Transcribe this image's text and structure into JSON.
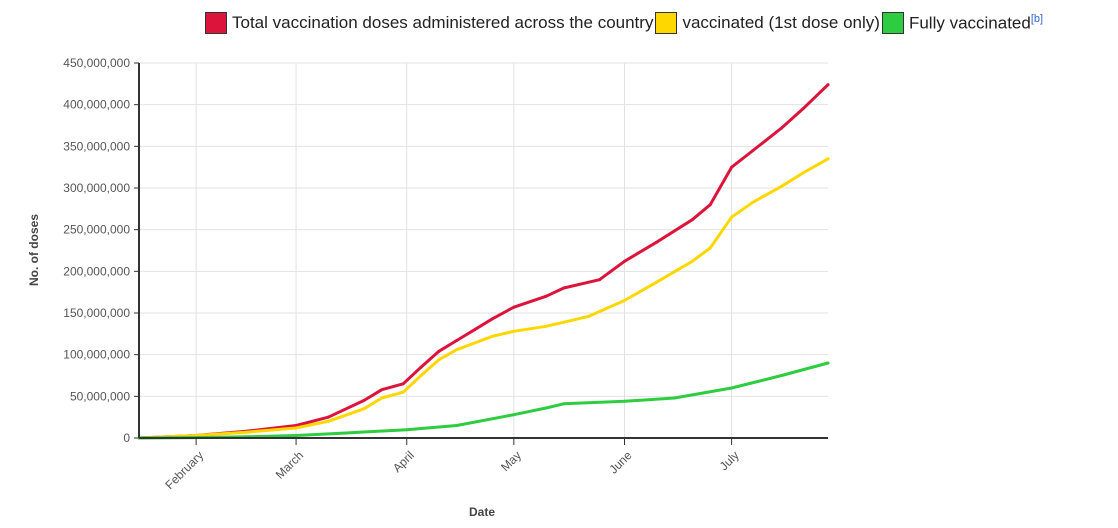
{
  "chart_data": {
    "type": "line",
    "xlabel": "Date",
    "ylabel": "No. of doses",
    "ylim": [
      0,
      450000000
    ],
    "yticks": [
      0,
      50000000,
      100000000,
      150000000,
      200000000,
      250000000,
      300000000,
      350000000,
      400000000,
      450000000
    ],
    "yticklabels": [
      "0",
      "50,000,000",
      "100,000,000",
      "150,000,000",
      "200,000,000",
      "250,000,000",
      "300,000,000",
      "350,000,000",
      "400,000,000",
      "450,000,000"
    ],
    "xlim": [
      "2021-01-16",
      "2021-07-28"
    ],
    "xticks": [
      "2021-02-01",
      "2021-03-01",
      "2021-04-01",
      "2021-05-01",
      "2021-06-01",
      "2021-07-01"
    ],
    "xticklabels": [
      "February",
      "March",
      "April",
      "May",
      "June",
      "July"
    ],
    "grid": true,
    "legend_position": "top",
    "series": [
      {
        "name": "Total vaccination doses administered across the country",
        "color": "#dc143c",
        "points": [
          [
            "2021-01-16",
            0
          ],
          [
            "2021-02-01",
            3000000
          ],
          [
            "2021-02-15",
            8000000
          ],
          [
            "2021-03-01",
            15000000
          ],
          [
            "2021-03-10",
            25000000
          ],
          [
            "2021-03-20",
            45000000
          ],
          [
            "2021-03-25",
            58000000
          ],
          [
            "2021-03-31",
            65000000
          ],
          [
            "2021-04-05",
            85000000
          ],
          [
            "2021-04-10",
            104000000
          ],
          [
            "2021-04-15",
            117000000
          ],
          [
            "2021-04-20",
            130000000
          ],
          [
            "2021-04-25",
            143000000
          ],
          [
            "2021-05-01",
            157000000
          ],
          [
            "2021-05-10",
            170000000
          ],
          [
            "2021-05-15",
            180000000
          ],
          [
            "2021-05-25",
            190000000
          ],
          [
            "2021-06-01",
            212000000
          ],
          [
            "2021-06-10",
            235000000
          ],
          [
            "2021-06-20",
            262000000
          ],
          [
            "2021-06-25",
            280000000
          ],
          [
            "2021-07-01",
            325000000
          ],
          [
            "2021-07-07",
            345000000
          ],
          [
            "2021-07-15",
            372000000
          ],
          [
            "2021-07-21",
            395000000
          ],
          [
            "2021-07-28",
            424000000
          ]
        ]
      },
      {
        "name": "vaccinated (1st dose only)",
        "color": "#ffd700",
        "points": [
          [
            "2021-01-16",
            0
          ],
          [
            "2021-02-01",
            3000000
          ],
          [
            "2021-02-15",
            7000000
          ],
          [
            "2021-03-01",
            12000000
          ],
          [
            "2021-03-10",
            20000000
          ],
          [
            "2021-03-20",
            35000000
          ],
          [
            "2021-03-25",
            48000000
          ],
          [
            "2021-03-31",
            55000000
          ],
          [
            "2021-04-05",
            75000000
          ],
          [
            "2021-04-10",
            94000000
          ],
          [
            "2021-04-15",
            106000000
          ],
          [
            "2021-04-20",
            114000000
          ],
          [
            "2021-04-25",
            122000000
          ],
          [
            "2021-05-01",
            128000000
          ],
          [
            "2021-05-10",
            134000000
          ],
          [
            "2021-05-15",
            139000000
          ],
          [
            "2021-05-22",
            146000000
          ],
          [
            "2021-06-01",
            165000000
          ],
          [
            "2021-06-10",
            187000000
          ],
          [
            "2021-06-20",
            212000000
          ],
          [
            "2021-06-25",
            228000000
          ],
          [
            "2021-07-01",
            265000000
          ],
          [
            "2021-07-07",
            283000000
          ],
          [
            "2021-07-15",
            302000000
          ],
          [
            "2021-07-21",
            318000000
          ],
          [
            "2021-07-28",
            335000000
          ]
        ]
      },
      {
        "name": "Fully vaccinated",
        "color": "#2ecc40",
        "points": [
          [
            "2021-01-16",
            0
          ],
          [
            "2021-02-01",
            500000
          ],
          [
            "2021-02-15",
            1500000
          ],
          [
            "2021-03-01",
            3000000
          ],
          [
            "2021-03-15",
            6000000
          ],
          [
            "2021-04-01",
            10000000
          ],
          [
            "2021-04-15",
            15000000
          ],
          [
            "2021-05-01",
            28000000
          ],
          [
            "2021-05-10",
            36000000
          ],
          [
            "2021-05-15",
            41000000
          ],
          [
            "2021-06-01",
            44000000
          ],
          [
            "2021-06-15",
            48000000
          ],
          [
            "2021-07-01",
            60000000
          ],
          [
            "2021-07-15",
            75000000
          ],
          [
            "2021-07-28",
            90000000
          ]
        ]
      }
    ]
  },
  "legend_items": [
    {
      "label": "Total vaccination doses administered across the country",
      "color": "#dc143c",
      "note": ""
    },
    {
      "label": "vaccinated (1st dose only)",
      "color": "#ffd700",
      "note": ""
    },
    {
      "label": "Fully vaccinated",
      "color": "#2ecc40",
      "note": "[b]"
    }
  ]
}
